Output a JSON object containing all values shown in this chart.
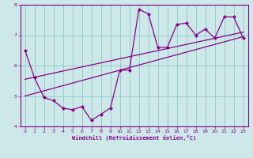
{
  "xlabel": "Windchill (Refroidissement éolien,°C)",
  "bg_color": "#cce8e8",
  "line_color": "#880088",
  "grid_color": "#99cccc",
  "x_data": [
    0,
    1,
    2,
    3,
    4,
    5,
    6,
    7,
    8,
    9,
    10,
    11,
    12,
    13,
    14,
    15,
    16,
    17,
    18,
    19,
    20,
    21,
    22,
    23
  ],
  "y_main": [
    6.5,
    5.6,
    4.95,
    4.85,
    4.6,
    4.55,
    4.65,
    4.2,
    4.4,
    4.6,
    5.85,
    5.85,
    7.85,
    7.7,
    6.6,
    6.6,
    7.35,
    7.4,
    7.0,
    7.2,
    6.9,
    7.6,
    7.6,
    6.9
  ],
  "trend1_x": [
    0,
    23
  ],
  "trend1_y": [
    5.55,
    7.1
  ],
  "trend2_x": [
    0,
    23
  ],
  "trend2_y": [
    5.0,
    6.95
  ],
  "ylim": [
    4.0,
    8.0
  ],
  "xlim": [
    -0.5,
    23.5
  ],
  "yticks": [
    4,
    5,
    6,
    7,
    8
  ],
  "xticks": [
    0,
    1,
    2,
    3,
    4,
    5,
    6,
    7,
    8,
    9,
    10,
    11,
    12,
    13,
    14,
    15,
    16,
    17,
    18,
    19,
    20,
    21,
    22,
    23
  ]
}
